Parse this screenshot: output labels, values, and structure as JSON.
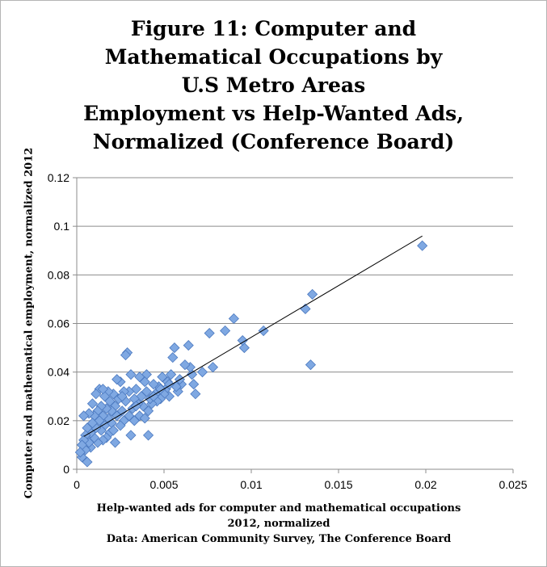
{
  "chart_data": {
    "type": "scatter",
    "title_lines": [
      "Figure 11: Computer and",
      "Mathematical Occupations by",
      "U.S Metro Areas",
      "Employment vs Help-Wanted Ads,",
      "Normalized (Conference Board)"
    ],
    "xlabel_lines": [
      "Help-wanted ads for computer and mathematical occupations",
      "2012, normalized",
      "Data: American Community Survey, The Conference Board"
    ],
    "ylabel": "Computer and mathematical employment, normalized 2012",
    "xlim": [
      0,
      0.025
    ],
    "ylim": [
      0,
      0.12
    ],
    "x_ticks": [
      0,
      0.005,
      0.01,
      0.015,
      0.02,
      0.025
    ],
    "x_tick_labels": [
      "0",
      "0.005",
      "0.01",
      "0.015",
      "0.02",
      "0.025"
    ],
    "y_ticks": [
      0,
      0.02,
      0.04,
      0.06,
      0.08,
      0.1,
      0.12
    ],
    "y_tick_labels": [
      "0",
      "0.02",
      "0.04",
      "0.06",
      "0.08",
      "0.1",
      "0.12"
    ],
    "grid": "horizontal",
    "marker_color": "#7fa8e2",
    "marker_edge": "#4a78bf",
    "trendline": {
      "x": [
        0.0004,
        0.0198
      ],
      "y": [
        0.0135,
        0.096
      ]
    },
    "points": [
      [
        0.0198,
        0.092
      ],
      [
        0.0135,
        0.072
      ],
      [
        0.0131,
        0.066
      ],
      [
        0.0134,
        0.043
      ],
      [
        0.0107,
        0.057
      ],
      [
        0.0096,
        0.05
      ],
      [
        0.0095,
        0.053
      ],
      [
        0.009,
        0.062
      ],
      [
        0.0085,
        0.057
      ],
      [
        0.0078,
        0.042
      ],
      [
        0.0076,
        0.056
      ],
      [
        0.0072,
        0.04
      ],
      [
        0.0068,
        0.031
      ],
      [
        0.0067,
        0.035
      ],
      [
        0.0066,
        0.039
      ],
      [
        0.0065,
        0.042
      ],
      [
        0.0064,
        0.051
      ],
      [
        0.0062,
        0.043
      ],
      [
        0.006,
        0.035
      ],
      [
        0.0059,
        0.037
      ],
      [
        0.0058,
        0.032
      ],
      [
        0.0057,
        0.034
      ],
      [
        0.0056,
        0.05
      ],
      [
        0.0055,
        0.046
      ],
      [
        0.0054,
        0.039
      ],
      [
        0.0053,
        0.03
      ],
      [
        0.0052,
        0.036
      ],
      [
        0.0051,
        0.033
      ],
      [
        0.005,
        0.031
      ],
      [
        0.0049,
        0.038
      ],
      [
        0.0048,
        0.029
      ],
      [
        0.0047,
        0.034
      ],
      [
        0.0046,
        0.028
      ],
      [
        0.0045,
        0.031
      ],
      [
        0.0044,
        0.035
      ],
      [
        0.0043,
        0.027
      ],
      [
        0.0042,
        0.029
      ],
      [
        0.0041,
        0.024
      ],
      [
        0.0041,
        0.014
      ],
      [
        0.004,
        0.039
      ],
      [
        0.004,
        0.032
      ],
      [
        0.0039,
        0.036
      ],
      [
        0.0038,
        0.026
      ],
      [
        0.0037,
        0.03
      ],
      [
        0.0036,
        0.022
      ],
      [
        0.0036,
        0.038
      ],
      [
        0.0035,
        0.027
      ],
      [
        0.0034,
        0.033
      ],
      [
        0.0033,
        0.02
      ],
      [
        0.0033,
        0.029
      ],
      [
        0.0032,
        0.025
      ],
      [
        0.0031,
        0.039
      ],
      [
        0.0031,
        0.014
      ],
      [
        0.003,
        0.032
      ],
      [
        0.003,
        0.022
      ],
      [
        0.0029,
        0.048
      ],
      [
        0.0028,
        0.047
      ],
      [
        0.0028,
        0.028
      ],
      [
        0.0027,
        0.02
      ],
      [
        0.0027,
        0.032
      ],
      [
        0.0026,
        0.024
      ],
      [
        0.0025,
        0.036
      ],
      [
        0.0025,
        0.018
      ],
      [
        0.0024,
        0.029
      ],
      [
        0.0023,
        0.022
      ],
      [
        0.0023,
        0.037
      ],
      [
        0.0022,
        0.011
      ],
      [
        0.0022,
        0.026
      ],
      [
        0.0021,
        0.031
      ],
      [
        0.002,
        0.019
      ],
      [
        0.002,
        0.024
      ],
      [
        0.0019,
        0.015
      ],
      [
        0.0019,
        0.028
      ],
      [
        0.0018,
        0.032
      ],
      [
        0.0018,
        0.021
      ],
      [
        0.0017,
        0.013
      ],
      [
        0.0017,
        0.025
      ],
      [
        0.0016,
        0.018
      ],
      [
        0.0016,
        0.03
      ],
      [
        0.0015,
        0.022
      ],
      [
        0.0015,
        0.012
      ],
      [
        0.0014,
        0.026
      ],
      [
        0.0014,
        0.016
      ],
      [
        0.0013,
        0.02
      ],
      [
        0.0013,
        0.033
      ],
      [
        0.0012,
        0.011
      ],
      [
        0.0012,
        0.024
      ],
      [
        0.0011,
        0.017
      ],
      [
        0.0011,
        0.031
      ],
      [
        0.001,
        0.022
      ],
      [
        0.001,
        0.013
      ],
      [
        0.0009,
        0.019
      ],
      [
        0.0009,
        0.027
      ],
      [
        0.0008,
        0.009
      ],
      [
        0.0008,
        0.015
      ],
      [
        0.0007,
        0.023
      ],
      [
        0.0007,
        0.011
      ],
      [
        0.0006,
        0.003
      ],
      [
        0.0006,
        0.017
      ],
      [
        0.0005,
        0.014
      ],
      [
        0.0005,
        0.008
      ],
      [
        0.0004,
        0.022
      ],
      [
        0.0004,
        0.012
      ],
      [
        0.0003,
        0.005
      ],
      [
        0.0003,
        0.01
      ],
      [
        0.0002,
        0.007
      ],
      [
        0.0015,
        0.033
      ],
      [
        0.0021,
        0.016
      ],
      [
        0.0026,
        0.03
      ],
      [
        0.0034,
        0.026
      ],
      [
        0.0039,
        0.021
      ],
      [
        0.0044,
        0.03
      ],
      [
        0.0048,
        0.033
      ],
      [
        0.0053,
        0.035
      ]
    ]
  }
}
